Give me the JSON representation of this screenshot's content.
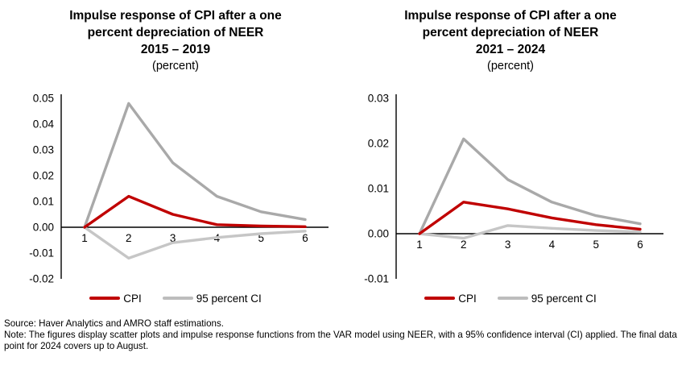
{
  "figures": [
    {
      "title_lines": "Impulse response of CPI after a one\npercent depreciation of NEER\n2015 – 2019",
      "subtitle": "(percent)",
      "legend": [
        {
          "label": "CPI",
          "color": "#c00000"
        },
        {
          "label": "95 percent CI",
          "color": "#bdbdbd"
        }
      ]
    },
    {
      "title_lines": "Impulse response of CPI after a one\npercent depreciation of NEER\n2021 – 2024",
      "subtitle": "(percent)",
      "legend": [
        {
          "label": "CPI",
          "color": "#c00000"
        },
        {
          "label": "95 percent CI",
          "color": "#bdbdbd"
        }
      ]
    }
  ],
  "chart_data": [
    {
      "type": "line",
      "title": "Impulse response of CPI after a one percent depreciation of NEER 2015 – 2019",
      "subtitle": "(percent)",
      "x": [
        1,
        2,
        3,
        4,
        5,
        6
      ],
      "series": [
        {
          "name": "CPI",
          "color": "#c00000",
          "values": [
            0.0,
            0.012,
            0.005,
            0.001,
            0.0005,
            0.0002
          ]
        },
        {
          "name": "95 percent CI (upper)",
          "color": "#a9a9a9",
          "values": [
            0.0,
            0.048,
            0.025,
            0.012,
            0.006,
            0.003
          ]
        },
        {
          "name": "95 percent CI (lower)",
          "color": "#c6c6c6",
          "values": [
            0.0,
            -0.012,
            -0.006,
            -0.004,
            -0.0025,
            -0.0015
          ]
        }
      ],
      "xlabel": "",
      "ylabel": "",
      "ylim": [
        -0.02,
        0.05
      ],
      "ytick_step": 0.01,
      "grid": false,
      "legend_position": "bottom"
    },
    {
      "type": "line",
      "title": "Impulse response of CPI after a one percent depreciation of NEER 2021 – 2024",
      "subtitle": "(percent)",
      "x": [
        1,
        2,
        3,
        4,
        5,
        6
      ],
      "series": [
        {
          "name": "CPI",
          "color": "#c00000",
          "values": [
            0.0,
            0.007,
            0.0055,
            0.0035,
            0.002,
            0.001
          ]
        },
        {
          "name": "95 percent CI (upper)",
          "color": "#a9a9a9",
          "values": [
            0.0,
            0.021,
            0.012,
            0.007,
            0.004,
            0.0022
          ]
        },
        {
          "name": "95 percent CI (lower)",
          "color": "#c6c6c6",
          "values": [
            0.0,
            -0.001,
            0.0018,
            0.0012,
            0.0007,
            0.0004
          ]
        }
      ],
      "xlabel": "",
      "ylabel": "",
      "ylim": [
        -0.01,
        0.03
      ],
      "ytick_step": 0.01,
      "grid": false,
      "legend_position": "bottom"
    }
  ],
  "footer": {
    "source": "Source: Haver Analytics and AMRO staff estimations.",
    "note": "Note: The figures display scatter plots and impulse response functions from the VAR model using NEER, with a 95% confidence interval (CI) applied. The final data point for 2024 covers up to August."
  }
}
